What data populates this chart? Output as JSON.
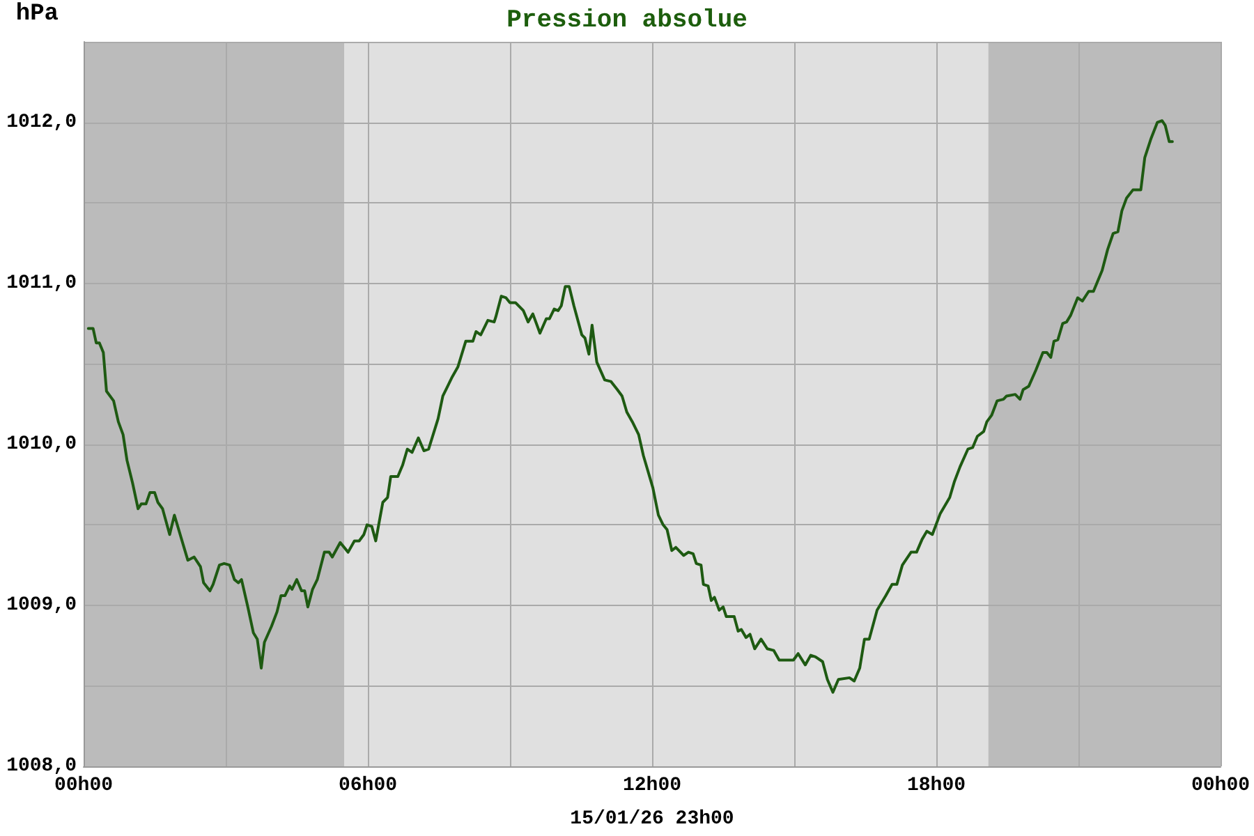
{
  "chart_data": {
    "type": "line",
    "title": "Pression absolue",
    "xlabel": "15/01/26 23h00",
    "ylabel": "hPa",
    "xlim": [
      "--01-15T00:00",
      "--01-16T00:00"
    ],
    "xticks": [
      {
        "value": "--01-15T00:00",
        "label": "00h00"
      },
      {
        "value": "--01-15T03:00",
        "label": null
      },
      {
        "value": "--01-15T06:00",
        "label": "06h00"
      },
      {
        "value": "--01-15T09:00",
        "label": null
      },
      {
        "value": "--01-15T12:00",
        "label": "12h00"
      },
      {
        "value": "--01-15T15:00",
        "label": null
      },
      {
        "value": "--01-15T18:00",
        "label": "18h00"
      },
      {
        "value": "--01-15T21:00",
        "label": null
      },
      {
        "value": "--01-16T00:00",
        "label": "00h00"
      }
    ],
    "ylim": [
      1008,
      1012.5
    ],
    "yticks": [
      {
        "value": 1008,
        "label": "1008,0"
      },
      {
        "value": 1008.5,
        "label": null
      },
      {
        "value": 1009,
        "label": "1009,0"
      },
      {
        "value": 1009.5,
        "label": null
      },
      {
        "value": 1010,
        "label": "1010,0"
      },
      {
        "value": 1010.5,
        "label": null
      },
      {
        "value": 1011,
        "label": "1011,0"
      },
      {
        "value": 1011.5,
        "label": null
      },
      {
        "value": 1012,
        "label": "1012,0"
      },
      {
        "value": 1012.5,
        "label": null
      }
    ],
    "grid": true,
    "line_style": "solid",
    "color": "#1e5a12",
    "bands": [
      {
        "axis": "x",
        "from": "--01-15T00:00",
        "to": "--01-15T05:30",
        "color": "#bbbbbb"
      },
      {
        "axis": "x",
        "from": "--01-15T19:06",
        "to": "--01-16T00:00",
        "color": "#bbbbbb"
      }
    ],
    "x": [
      "--01-15T00:06",
      "--01-15T00:12",
      "--01-15T00:16",
      "--01-15T00:20",
      "--01-15T00:25",
      "--01-15T00:29",
      "--01-15T00:38",
      "--01-15T00:44",
      "--01-15T00:50",
      "--01-15T00:55",
      "--01-15T01:02",
      "--01-15T01:09",
      "--01-15T01:13",
      "--01-15T01:19",
      "--01-15T01:24",
      "--01-15T01:30",
      "--01-15T01:34",
      "--01-15T01:40",
      "--01-15T01:49",
      "--01-15T01:55",
      "--01-15T02:12",
      "--01-15T02:20",
      "--01-15T02:28",
      "--01-15T02:32",
      "--01-15T02:40",
      "--01-15T02:44",
      "--01-15T02:52",
      "--01-15T02:58",
      "--01-15T03:05",
      "--01-15T03:11",
      "--01-15T03:16",
      "--01-15T03:20",
      "--01-15T03:28",
      "--01-15T03:35",
      "--01-15T03:40",
      "--01-15T03:45",
      "--01-15T03:49",
      "--01-15T03:58",
      "--01-15T04:05",
      "--01-15T04:10",
      "--01-15T04:15",
      "--01-15T04:21",
      "--01-15T04:24",
      "--01-15T04:30",
      "--01-15T04:36",
      "--01-15T04:40",
      "--01-15T04:44",
      "--01-15T04:50",
      "--01-15T04:56",
      "--01-15T05:05",
      "--01-15T05:11",
      "--01-15T05:15",
      "--01-15T05:25",
      "--01-15T05:35",
      "--01-15T05:43",
      "--01-15T05:49",
      "--01-15T05:55",
      "--01-15T05:59",
      "--01-15T06:05",
      "--01-15T06:10",
      "--01-15T06:19",
      "--01-15T06:25",
      "--01-15T06:29",
      "--01-15T06:38",
      "--01-15T06:44",
      "--01-15T06:50",
      "--01-15T06:56",
      "--01-15T07:04",
      "--01-15T07:11",
      "--01-15T07:17",
      "--01-15T07:29",
      "--01-15T07:35",
      "--01-15T07:41",
      "--01-15T07:47",
      "--01-15T07:54",
      "--01-15T08:04",
      "--01-15T08:13",
      "--01-15T08:17",
      "--01-15T08:23",
      "--01-15T08:32",
      "--01-15T08:40",
      "--01-15T08:42",
      "--01-15T08:49",
      "--01-15T08:55",
      "--01-15T09:00",
      "--01-15T09:07",
      "--01-15T09:17",
      "--01-15T09:23",
      "--01-15T09:29",
      "--01-15T09:38",
      "--01-15T09:46",
      "--01-15T09:50",
      "--01-15T09:56",
      "--01-15T10:01",
      "--01-15T10:05",
      "--01-15T10:10",
      "--01-15T10:15",
      "--01-15T10:21",
      "--01-15T10:31",
      "--01-15T10:35",
      "--01-15T10:40",
      "--01-15T10:44",
      "--01-15T10:50",
      "--01-15T11:00",
      "--01-15T11:08",
      "--01-15T11:16",
      "--01-15T11:22",
      "--01-15T11:28",
      "--01-15T11:35",
      "--01-15T11:43",
      "--01-15T11:49",
      "--01-15T12:01",
      "--01-15T12:08",
      "--01-15T12:14",
      "--01-15T12:19",
      "--01-15T12:25",
      "--01-15T12:30",
      "--01-15T12:40",
      "--01-15T12:46",
      "--01-15T12:52",
      "--01-15T12:56",
      "--01-15T13:02",
      "--01-15T13:05",
      "--01-15T13:11",
      "--01-15T13:15",
      "--01-15T13:19",
      "--01-15T13:25",
      "--01-15T13:30",
      "--01-15T13:34",
      "--01-15T13:44",
      "--01-15T13:49",
      "--01-15T13:53",
      "--01-15T13:59",
      "--01-15T14:04",
      "--01-15T14:10",
      "--01-15T14:18",
      "--01-15T14:26",
      "--01-15T14:34",
      "--01-15T14:41",
      "--01-15T14:59",
      "--01-15T15:05",
      "--01-15T15:14",
      "--01-15T15:21",
      "--01-15T15:27",
      "--01-15T15:36",
      "--01-15T15:42",
      "--01-15T15:49",
      "--01-15T15:56",
      "--01-15T16:10",
      "--01-15T16:16",
      "--01-15T16:23",
      "--01-15T16:29",
      "--01-15T16:35",
      "--01-15T16:45",
      "--01-15T16:56",
      "--01-15T17:04",
      "--01-15T17:10",
      "--01-15T17:17",
      "--01-15T17:28",
      "--01-15T17:35",
      "--01-15T17:42",
      "--01-15T17:48",
      "--01-15T17:55",
      "--01-15T18:05",
      "--01-15T18:17",
      "--01-15T18:23",
      "--01-15T18:30",
      "--01-15T18:40",
      "--01-15T18:46",
      "--01-15T18:52",
      "--01-15T19:00",
      "--01-15T19:04",
      "--01-15T19:10",
      "--01-15T19:17",
      "--01-15T19:25",
      "--01-15T19:29",
      "--01-15T19:40",
      "--01-15T19:46",
      "--01-15T19:50",
      "--01-15T19:57",
      "--01-15T20:06",
      "--01-15T20:15",
      "--01-15T20:20",
      "--01-15T20:25",
      "--01-15T20:29",
      "--01-15T20:34",
      "--01-15T20:40",
      "--01-15T20:45",
      "--01-15T20:50",
      "--01-15T20:59",
      "--01-15T21:05",
      "--01-15T21:13",
      "--01-15T21:19",
      "--01-15T21:30",
      "--01-15T21:37",
      "--01-15T21:44",
      "--01-15T21:50",
      "--01-15T21:55",
      "--01-15T22:01",
      "--01-15T22:09",
      "--01-15T22:19",
      "--01-15T22:24",
      "--01-15T22:32",
      "--01-15T22:40",
      "--01-15T22:46",
      "--01-15T22:50",
      "--01-15T22:55",
      "--01-15T22:59"
    ],
    "values": [
      1010.72,
      1010.72,
      1010.63,
      1010.63,
      1010.57,
      1010.33,
      1010.27,
      1010.14,
      1010.06,
      1009.9,
      1009.76,
      1009.6,
      1009.63,
      1009.63,
      1009.7,
      1009.7,
      1009.64,
      1009.6,
      1009.44,
      1009.56,
      1009.28,
      1009.3,
      1009.24,
      1009.14,
      1009.09,
      1009.13,
      1009.25,
      1009.26,
      1009.25,
      1009.16,
      1009.14,
      1009.16,
      1008.99,
      1008.83,
      1008.79,
      1008.61,
      1008.77,
      1008.87,
      1008.96,
      1009.06,
      1009.06,
      1009.12,
      1009.1,
      1009.16,
      1009.09,
      1009.09,
      1008.99,
      1009.1,
      1009.16,
      1009.33,
      1009.33,
      1009.3,
      1009.39,
      1009.33,
      1009.4,
      1009.4,
      1009.44,
      1009.5,
      1009.49,
      1009.4,
      1009.64,
      1009.67,
      1009.8,
      1009.8,
      1009.87,
      1009.97,
      1009.95,
      1010.04,
      1009.96,
      1009.97,
      1010.16,
      1010.3,
      1010.36,
      1010.42,
      1010.48,
      1010.64,
      1010.64,
      1010.7,
      1010.68,
      1010.77,
      1010.76,
      1010.79,
      1010.92,
      1010.91,
      1010.88,
      1010.88,
      1010.83,
      1010.76,
      1010.81,
      1010.69,
      1010.78,
      1010.78,
      1010.84,
      1010.83,
      1010.86,
      1010.98,
      1010.98,
      1010.86,
      1010.68,
      1010.66,
      1010.56,
      1010.74,
      1010.51,
      1010.4,
      1010.39,
      1010.34,
      1010.3,
      1010.2,
      1010.14,
      1010.06,
      1009.93,
      1009.73,
      1009.56,
      1009.5,
      1009.47,
      1009.34,
      1009.36,
      1009.31,
      1009.33,
      1009.32,
      1009.26,
      1009.25,
      1009.13,
      1009.12,
      1009.03,
      1009.05,
      1008.97,
      1008.99,
      1008.93,
      1008.93,
      1008.84,
      1008.85,
      1008.8,
      1008.82,
      1008.73,
      1008.79,
      1008.73,
      1008.72,
      1008.66,
      1008.66,
      1008.7,
      1008.63,
      1008.69,
      1008.68,
      1008.65,
      1008.54,
      1008.46,
      1008.54,
      1008.55,
      1008.53,
      1008.61,
      1008.79,
      1008.79,
      1008.97,
      1009.06,
      1009.13,
      1009.13,
      1009.25,
      1009.33,
      1009.33,
      1009.41,
      1009.46,
      1009.44,
      1009.57,
      1009.67,
      1009.77,
      1009.86,
      1009.97,
      1009.98,
      1010.05,
      1010.08,
      1010.14,
      1010.18,
      1010.27,
      1010.28,
      1010.3,
      1010.31,
      1010.28,
      1010.34,
      1010.36,
      1010.46,
      1010.57,
      1010.57,
      1010.54,
      1010.64,
      1010.65,
      1010.75,
      1010.76,
      1010.8,
      1010.91,
      1010.89,
      1010.95,
      1010.95,
      1011.08,
      1011.21,
      1011.31,
      1011.32,
      1011.45,
      1011.53,
      1011.58,
      1011.58,
      1011.78,
      1011.9,
      1012.0,
      1012.01,
      1011.98,
      1011.88,
      1011.88
    ]
  }
}
